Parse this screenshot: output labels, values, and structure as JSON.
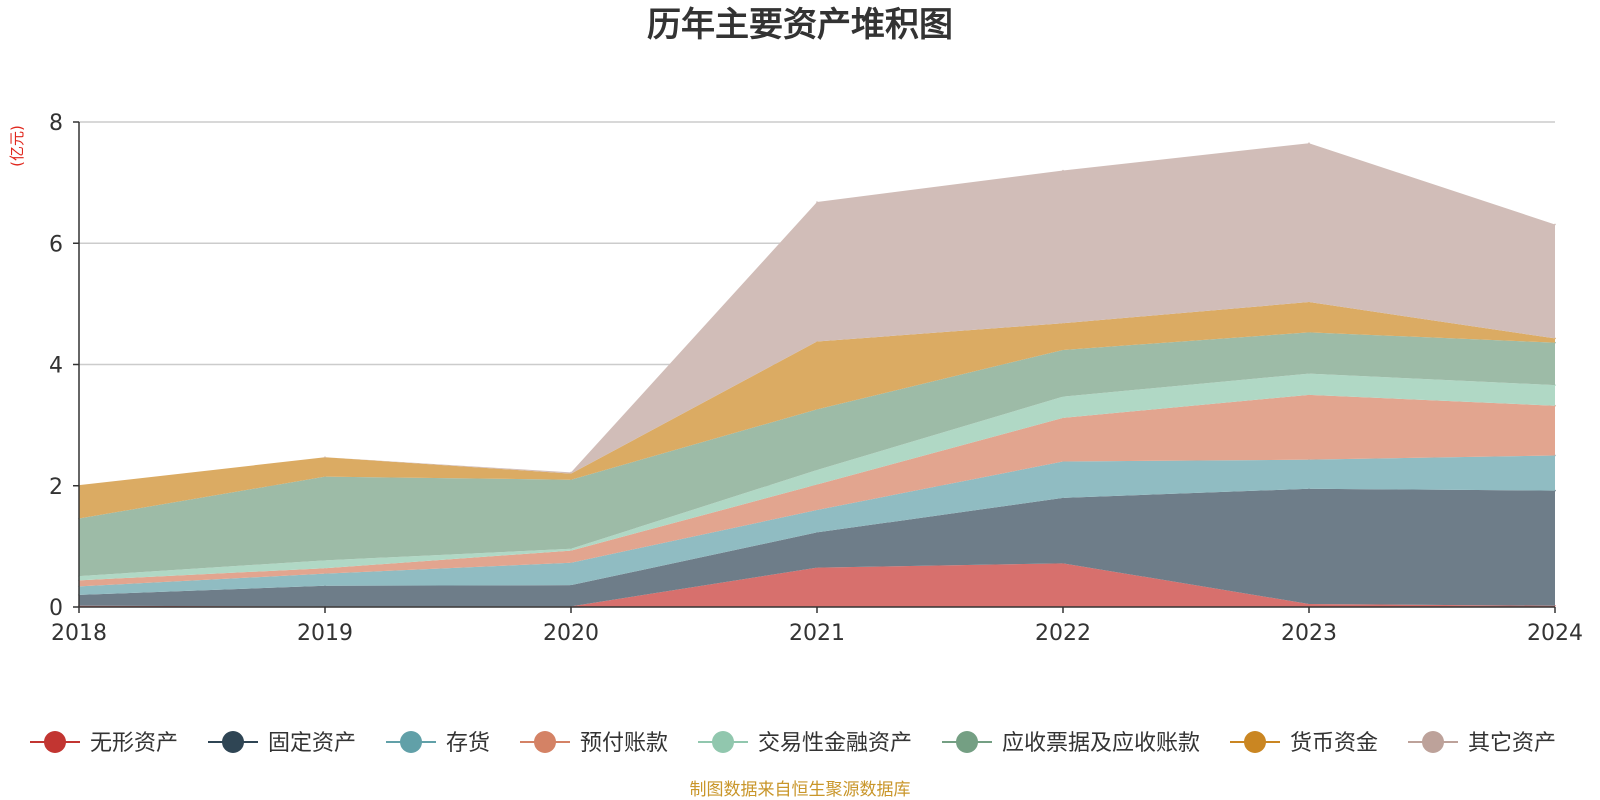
{
  "chart_data": {
    "type": "area",
    "stacked": true,
    "title": "历年主要资产堆积图",
    "unit_label": "(亿元)",
    "xlabel": "",
    "ylabel": "(亿元)",
    "x": [
      "2018",
      "2019",
      "2020",
      "2021",
      "2022",
      "2023",
      "2024"
    ],
    "ylim": [
      0,
      8
    ],
    "yticks": [
      "0",
      "2",
      "4",
      "6",
      "8"
    ],
    "grid": true,
    "legend_position": "bottom",
    "series": [
      {
        "name": "无形资产",
        "color": "#c23531",
        "fill": "#d7706d",
        "values": [
          0.02,
          0.01,
          0.01,
          0.65,
          0.72,
          0.05,
          0.02
        ]
      },
      {
        "name": "固定资产",
        "color": "#2f4554",
        "fill": "#6e7d89",
        "values": [
          0.18,
          0.34,
          0.35,
          0.58,
          1.08,
          1.9,
          1.9
        ]
      },
      {
        "name": "存货",
        "color": "#61a0a8",
        "fill": "#90bcc2",
        "values": [
          0.14,
          0.2,
          0.37,
          0.37,
          0.6,
          0.48,
          0.58
        ]
      },
      {
        "name": "预付账款",
        "color": "#d48265",
        "fill": "#e2a58f",
        "values": [
          0.1,
          0.09,
          0.2,
          0.42,
          0.72,
          1.07,
          0.82
        ]
      },
      {
        "name": "交易性金融资产",
        "color": "#91c7ae",
        "fill": "#b0d8c5",
        "values": [
          0.07,
          0.13,
          0.03,
          0.24,
          0.35,
          0.35,
          0.34
        ]
      },
      {
        "name": "应收票据及应收账款",
        "color": "#749f83",
        "fill": "#9dbba7",
        "values": [
          0.95,
          1.38,
          1.14,
          1.0,
          0.77,
          0.68,
          0.7
        ]
      },
      {
        "name": "货币资金",
        "color": "#ca8622",
        "fill": "#dbab63",
        "values": [
          0.55,
          0.32,
          0.1,
          1.12,
          0.44,
          0.5,
          0.07
        ]
      },
      {
        "name": "其它资产",
        "color": "#bda29a",
        "fill": "#d1bdb8",
        "values": [
          0.0,
          0.0,
          0.02,
          2.3,
          2.52,
          2.62,
          1.88
        ]
      }
    ],
    "source_note": "制图数据来自恒生聚源数据库"
  }
}
